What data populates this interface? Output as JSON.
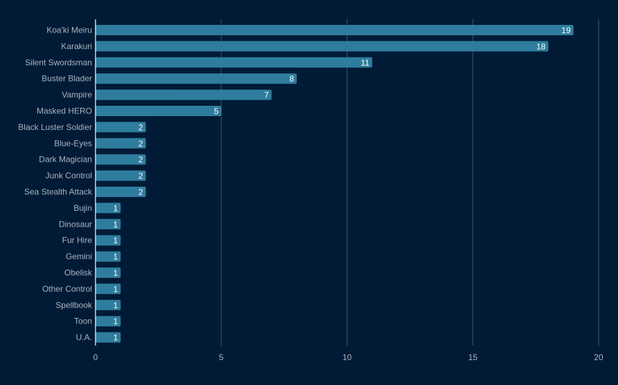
{
  "chart_data": {
    "type": "bar",
    "orientation": "horizontal",
    "categories": [
      "Koa'ki Meiru",
      "Karakuri",
      "Silent Swordsman",
      "Buster Blader",
      "Vampire",
      "Masked HERO",
      "Black Luster Soldier",
      "Blue-Eyes",
      "Dark Magician",
      "Junk Control",
      "Sea Stealth Attack",
      "Bujin",
      "Dinosaur",
      "Fur Hire",
      "Gemini",
      "Obelisk",
      "Other Control",
      "Spellbook",
      "Toon",
      "U.A."
    ],
    "values": [
      19,
      18,
      11,
      8,
      7,
      5,
      2,
      2,
      2,
      2,
      2,
      1,
      1,
      1,
      1,
      1,
      1,
      1,
      1,
      1
    ],
    "xlim": [
      0,
      20
    ],
    "xticks": [
      "0",
      "5",
      "10",
      "15",
      "20"
    ],
    "grid": true,
    "data_labels": true,
    "colors": {
      "background": "#011b36",
      "bar": "#2e7d9e",
      "grid": "#3d5670",
      "text": "#a9b4c2",
      "label": "#ffffff"
    }
  }
}
